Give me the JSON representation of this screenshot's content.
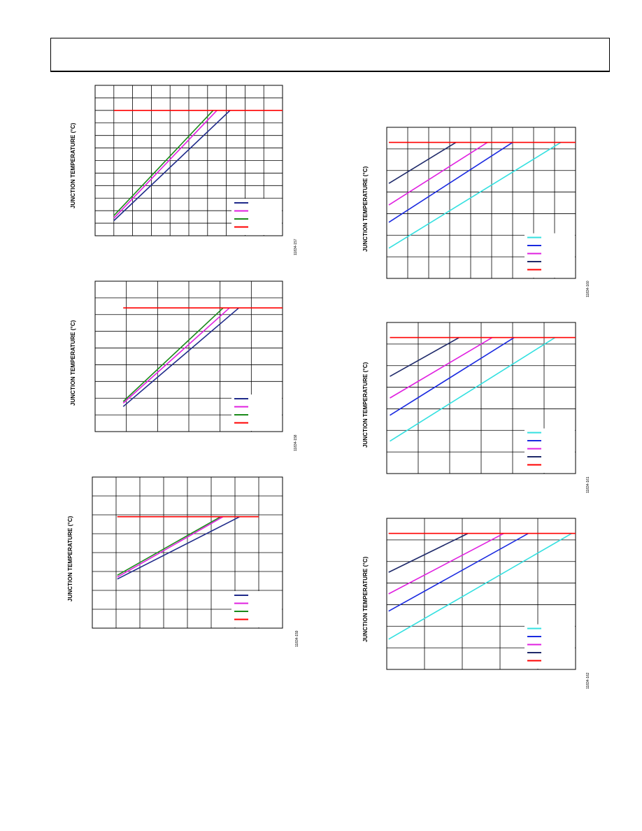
{
  "page": {
    "axis_title_common": "JUNCTION TEMPERATURE (°C)"
  },
  "chart_data": [
    {
      "type": "line",
      "figure_id": "11834-157",
      "ylabel": "JUNCTION TEMPERATURE (°C)",
      "xlabel": "",
      "xlim": [
        0,
        10
      ],
      "ylim": [
        0,
        12
      ],
      "grid": true,
      "legend_position": "bottom-right",
      "series": [
        {
          "color": "#1f2a8a",
          "x": [
            1,
            7.2
          ],
          "y": [
            1.2,
            10.0
          ]
        },
        {
          "color": "#e020e0",
          "x": [
            1,
            6.5
          ],
          "y": [
            1.4,
            10.0
          ]
        },
        {
          "color": "#1a8a1a",
          "x": [
            1,
            6.3
          ],
          "y": [
            1.6,
            10.0
          ]
        },
        {
          "color": "#ff0000",
          "x": [
            1,
            10
          ],
          "y": [
            10.0,
            10.0
          ]
        }
      ]
    },
    {
      "type": "line",
      "figure_id": "11834-158",
      "ylabel": "JUNCTION TEMPERATURE (°C)",
      "xlabel": "",
      "xlim": [
        0,
        6
      ],
      "ylim": [
        0,
        9
      ],
      "grid": true,
      "legend_position": "bottom-right",
      "series": [
        {
          "color": "#1f2a8a",
          "x": [
            0.9,
            4.6
          ],
          "y": [
            1.5,
            7.4
          ]
        },
        {
          "color": "#e020e0",
          "x": [
            0.9,
            4.3
          ],
          "y": [
            1.7,
            7.4
          ]
        },
        {
          "color": "#1a8a1a",
          "x": [
            0.9,
            4.1
          ],
          "y": [
            1.8,
            7.4
          ]
        },
        {
          "color": "#ff0000",
          "x": [
            0.9,
            6
          ],
          "y": [
            7.4,
            7.4
          ]
        }
      ]
    },
    {
      "type": "line",
      "figure_id": "11834-159",
      "ylabel": "JUNCTION TEMPERATURE (°C)",
      "xlabel": "",
      "xlim": [
        0,
        8
      ],
      "ylim": [
        0,
        8
      ],
      "grid": true,
      "legend_position": "bottom-right",
      "series": [
        {
          "color": "#1f2a8a",
          "x": [
            1.05,
            6.2
          ],
          "y": [
            2.6,
            5.9
          ]
        },
        {
          "color": "#e020e0",
          "x": [
            1.05,
            5.5
          ],
          "y": [
            2.7,
            5.9
          ]
        },
        {
          "color": "#1a8a1a",
          "x": [
            1.05,
            5.4
          ],
          "y": [
            2.8,
            5.9
          ]
        },
        {
          "color": "#ff0000",
          "x": [
            1.05,
            7
          ],
          "y": [
            5.9,
            5.9
          ]
        }
      ]
    },
    {
      "type": "line",
      "figure_id": "11834-160",
      "ylabel": "JUNCTION TEMPERATURE (°C)",
      "xlabel": "",
      "xlim": [
        0,
        9
      ],
      "ylim": [
        0,
        7
      ],
      "grid": true,
      "legend_position": "bottom-right",
      "series": [
        {
          "color": "#33e0e0",
          "x": [
            0.1,
            8.3
          ],
          "y": [
            1.4,
            6.3
          ]
        },
        {
          "color": "#1a2ae0",
          "x": [
            0.1,
            6.0
          ],
          "y": [
            2.6,
            6.3
          ]
        },
        {
          "color": "#e020e0",
          "x": [
            0.1,
            4.8
          ],
          "y": [
            3.4,
            6.3
          ]
        },
        {
          "color": "#1f2a6a",
          "x": [
            0.1,
            3.3
          ],
          "y": [
            4.4,
            6.3
          ]
        },
        {
          "color": "#ff0000",
          "x": [
            0.1,
            9
          ],
          "y": [
            6.3,
            6.3
          ]
        }
      ]
    },
    {
      "type": "line",
      "figure_id": "11834-161",
      "ylabel": "JUNCTION TEMPERATURE (°C)",
      "xlabel": "",
      "xlim": [
        0,
        6
      ],
      "ylim": [
        0,
        7
      ],
      "grid": true,
      "legend_position": "bottom-right",
      "series": [
        {
          "color": "#33e0e0",
          "x": [
            0.1,
            5.35
          ],
          "y": [
            1.5,
            6.3
          ]
        },
        {
          "color": "#1a2ae0",
          "x": [
            0.1,
            4.05
          ],
          "y": [
            2.7,
            6.3
          ]
        },
        {
          "color": "#e020e0",
          "x": [
            0.1,
            3.35
          ],
          "y": [
            3.5,
            6.3
          ]
        },
        {
          "color": "#1f2a6a",
          "x": [
            0.1,
            2.3
          ],
          "y": [
            4.5,
            6.3
          ]
        },
        {
          "color": "#ff0000",
          "x": [
            0.1,
            6
          ],
          "y": [
            6.3,
            6.3
          ]
        }
      ]
    },
    {
      "type": "line",
      "figure_id": "11834-162",
      "ylabel": "JUNCTION TEMPERATURE (°C)",
      "xlabel": "",
      "xlim": [
        0,
        5
      ],
      "ylim": [
        0,
        7
      ],
      "grid": true,
      "legend_position": "bottom-right",
      "series": [
        {
          "color": "#33e0e0",
          "x": [
            0.05,
            4.9
          ],
          "y": [
            1.4,
            6.3
          ]
        },
        {
          "color": "#1a2ae0",
          "x": [
            0.05,
            3.75
          ],
          "y": [
            2.7,
            6.3
          ]
        },
        {
          "color": "#e020e0",
          "x": [
            0.05,
            3.1
          ],
          "y": [
            3.5,
            6.3
          ]
        },
        {
          "color": "#1f2a6a",
          "x": [
            0.05,
            2.15
          ],
          "y": [
            4.5,
            6.3
          ]
        },
        {
          "color": "#ff0000",
          "x": [
            0.05,
            5
          ],
          "y": [
            6.3,
            6.3
          ]
        }
      ]
    }
  ]
}
